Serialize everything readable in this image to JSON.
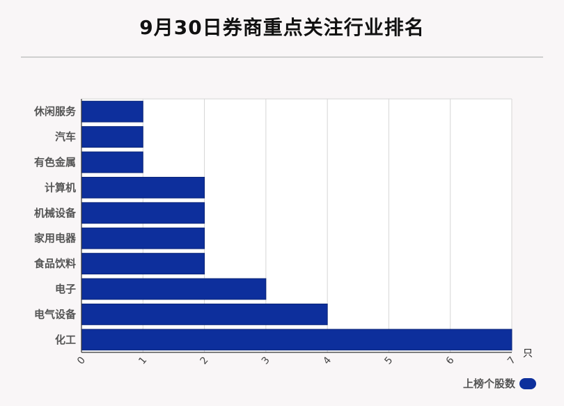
{
  "title": "9月30日券商重点关注行业排名",
  "chart_data": {
    "type": "bar",
    "orientation": "horizontal",
    "title": "9月30日券商重点关注行业排名",
    "categories": [
      "休闲服务",
      "汽车",
      "有色金属",
      "计算机",
      "机械设备",
      "家用电器",
      "食品饮料",
      "电子",
      "电气设备",
      "化工"
    ],
    "series": [
      {
        "name": "上榜个股数",
        "values": [
          1,
          1,
          1,
          2,
          2,
          2,
          2,
          3,
          4,
          7
        ]
      }
    ],
    "xlabel": "只",
    "ylabel": "",
    "xlim": [
      0,
      7
    ],
    "x_ticks": [
      "0",
      "1",
      "2",
      "3",
      "4",
      "5",
      "6",
      "7"
    ],
    "grid": true,
    "legend_position": "bottom-right",
    "bar_color": "#0d2f9c"
  }
}
